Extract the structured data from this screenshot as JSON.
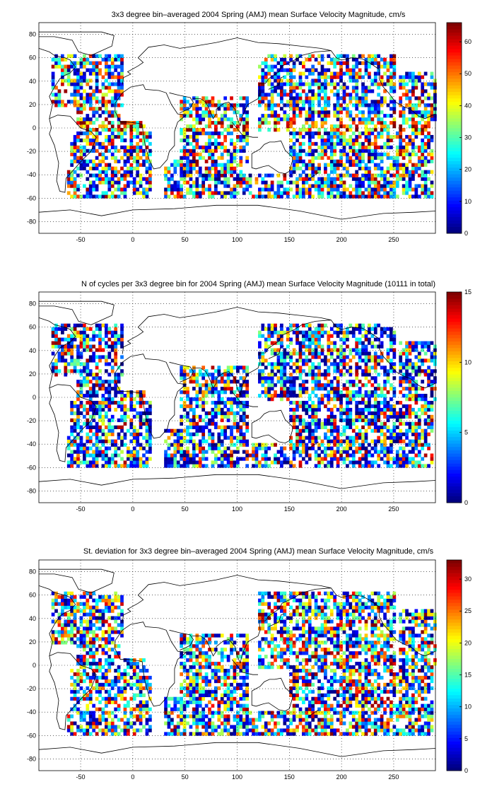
{
  "chart_data": [
    {
      "type": "heatmap",
      "title": "3x3 degree bin–averaged 2004 Spring (AMJ) mean Surface Velocity Magnitude, cm/s",
      "xlim": [
        -90,
        290
      ],
      "ylim": [
        -90,
        90
      ],
      "xticks": [
        -50,
        0,
        50,
        100,
        150,
        200,
        250
      ],
      "yticks": [
        80,
        60,
        40,
        20,
        0,
        -20,
        -40,
        -60,
        -80
      ],
      "grid": "dotted",
      "colormap": "jet",
      "colorbar": {
        "min": 0,
        "max": 66,
        "ticks": [
          0,
          10,
          20,
          30,
          40,
          50,
          60
        ]
      }
    },
    {
      "type": "heatmap",
      "title": "N of cycles per 3x3 degree bin for 2004 Spring (AMJ) mean Surface Velocity Magnitude (10111 in total)",
      "xlim": [
        -90,
        290
      ],
      "ylim": [
        -90,
        90
      ],
      "xticks": [
        -50,
        0,
        50,
        100,
        150,
        200,
        250
      ],
      "yticks": [
        80,
        60,
        40,
        20,
        0,
        -20,
        -40,
        -60,
        -80
      ],
      "grid": "dotted",
      "colormap": "jet",
      "colorbar": {
        "min": 0,
        "max": 15,
        "ticks": [
          0,
          5,
          10,
          15
        ]
      }
    },
    {
      "type": "heatmap",
      "title": "St. deviation for 3x3 degree bin–averaged 2004 Spring (AMJ) mean Surface Velocity Magnitude, cm/s",
      "xlim": [
        -90,
        290
      ],
      "ylim": [
        -90,
        90
      ],
      "xticks": [
        -50,
        0,
        50,
        100,
        150,
        200,
        250
      ],
      "yticks": [
        80,
        60,
        40,
        20,
        0,
        -20,
        -40,
        -60,
        -80
      ],
      "grid": "dotted",
      "colormap": "jet",
      "colorbar": {
        "min": 0,
        "max": 33,
        "ticks": [
          0,
          5,
          10,
          15,
          20,
          25,
          30
        ]
      }
    }
  ]
}
